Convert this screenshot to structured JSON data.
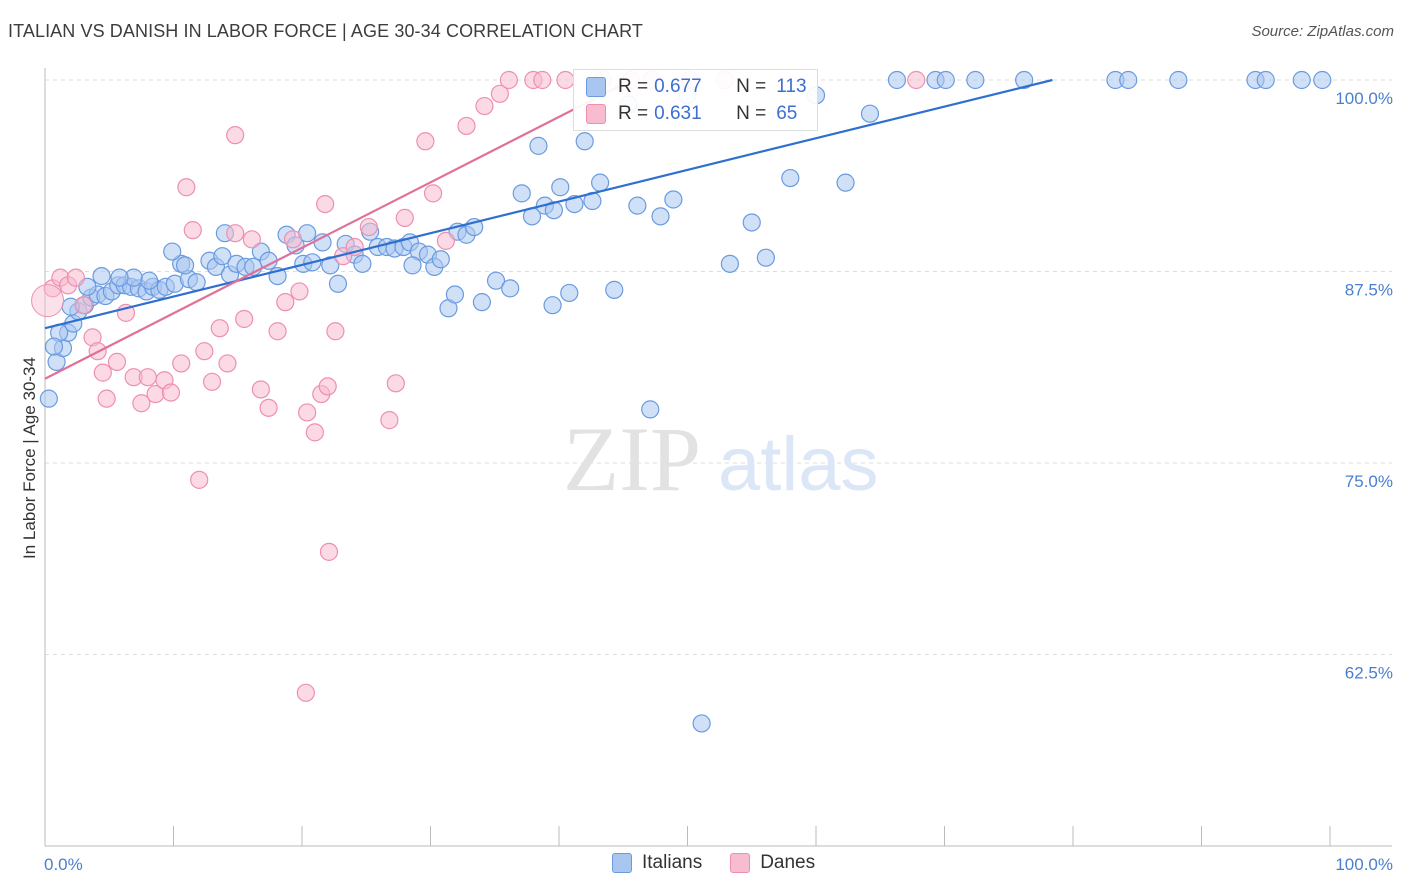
{
  "title": "ITALIAN VS DANISH IN LABOR FORCE | AGE 30-34 CORRELATION CHART",
  "source": "Source: ZipAtlas.com",
  "watermark": {
    "zip": "ZIP",
    "atlas": "atlas"
  },
  "legend": {
    "rows": [
      {
        "r_label": "R =",
        "r_value": "0.677",
        "n_label": "N =",
        "n_value": "113"
      },
      {
        "r_label": "R =",
        "r_value": "0.631",
        "n_label": "N =",
        "n_value": "65"
      }
    ]
  },
  "bottom_legend": [
    "Italians",
    "Danes"
  ],
  "colors": {
    "italians_fill": "#a9c6f0",
    "italians_stroke": "#6a9be0",
    "italians_line": "#2f6fd0",
    "danes_fill": "#f7bcd0",
    "danes_stroke": "#ee8fb0",
    "danes_line": "#e0709a",
    "axis_text": "#4a7fd0",
    "grid": "#dddddd"
  },
  "chart_data": {
    "type": "scatter",
    "title": "ITALIAN VS DANISH IN LABOR FORCE | AGE 30-34 CORRELATION CHART",
    "xlabel": "",
    "ylabel": "In Labor Force | Age 30-34",
    "xlim": [
      0,
      100
    ],
    "ylim": [
      50,
      101.5
    ],
    "x_tick_labels": [
      "0.0%",
      "100.0%"
    ],
    "y_ticks": [
      {
        "value": 100,
        "label": "100.0%"
      },
      {
        "value": 87.5,
        "label": "87.5%"
      },
      {
        "value": 75,
        "label": "75.0%"
      },
      {
        "value": 62.5,
        "label": "62.5%"
      }
    ],
    "grid": true,
    "series": [
      {
        "name": "Italians",
        "r": 0.677,
        "n": 113,
        "trend": {
          "x": [
            0,
            78.4
          ],
          "y": [
            83.8,
            100
          ]
        },
        "points": [
          [
            0.3,
            79.2
          ],
          [
            0.9,
            81.6
          ],
          [
            1.4,
            82.5
          ],
          [
            1.8,
            83.5
          ],
          [
            2.2,
            84.1
          ],
          [
            2.6,
            84.9
          ],
          [
            3.1,
            85.3
          ],
          [
            3.6,
            85.8
          ],
          [
            4.1,
            86.0
          ],
          [
            4.7,
            85.9
          ],
          [
            5.2,
            86.2
          ],
          [
            5.7,
            86.6
          ],
          [
            6.2,
            86.6
          ],
          [
            6.7,
            86.5
          ],
          [
            7.3,
            86.4
          ],
          [
            7.9,
            86.2
          ],
          [
            8.4,
            86.5
          ],
          [
            8.9,
            86.3
          ],
          [
            9.4,
            86.5
          ],
          [
            10.1,
            86.7
          ],
          [
            10.6,
            88.0
          ],
          [
            11.2,
            87.0
          ],
          [
            11.8,
            86.8
          ],
          [
            12.8,
            88.2
          ],
          [
            13.3,
            87.8
          ],
          [
            13.8,
            88.5
          ],
          [
            14.4,
            87.3
          ],
          [
            14.9,
            88.0
          ],
          [
            15.6,
            87.8
          ],
          [
            16.2,
            87.8
          ],
          [
            16.8,
            88.8
          ],
          [
            17.4,
            88.2
          ],
          [
            18.1,
            87.2
          ],
          [
            18.8,
            89.9
          ],
          [
            19.5,
            89.2
          ],
          [
            20.1,
            88.0
          ],
          [
            20.8,
            88.1
          ],
          [
            21.6,
            89.4
          ],
          [
            22.2,
            87.9
          ],
          [
            22.8,
            86.7
          ],
          [
            23.4,
            89.3
          ],
          [
            24.1,
            88.6
          ],
          [
            24.7,
            88.0
          ],
          [
            25.3,
            90.1
          ],
          [
            25.9,
            89.1
          ],
          [
            26.6,
            89.1
          ],
          [
            27.2,
            89.0
          ],
          [
            27.9,
            89.1
          ],
          [
            28.4,
            89.4
          ],
          [
            29.1,
            88.8
          ],
          [
            29.8,
            88.6
          ],
          [
            30.3,
            87.8
          ],
          [
            30.8,
            88.3
          ],
          [
            31.4,
            85.1
          ],
          [
            32.1,
            90.1
          ],
          [
            32.8,
            89.9
          ],
          [
            33.4,
            90.4
          ],
          [
            34.0,
            85.5
          ],
          [
            35.1,
            86.9
          ],
          [
            36.2,
            86.4
          ],
          [
            37.1,
            92.6
          ],
          [
            37.9,
            91.1
          ],
          [
            38.4,
            95.7
          ],
          [
            38.9,
            91.8
          ],
          [
            39.6,
            91.5
          ],
          [
            40.1,
            93.0
          ],
          [
            41.2,
            91.9
          ],
          [
            42.0,
            96.0
          ],
          [
            42.6,
            92.1
          ],
          [
            43.2,
            93.3
          ],
          [
            44.3,
            86.3
          ],
          [
            45.4,
            98.4
          ],
          [
            46.1,
            91.8
          ],
          [
            47.1,
            78.5
          ],
          [
            47.9,
            91.1
          ],
          [
            48.9,
            92.2
          ],
          [
            50.0,
            99.0
          ],
          [
            51.1,
            58.0
          ],
          [
            53.3,
            88.0
          ],
          [
            55.0,
            90.7
          ],
          [
            56.1,
            88.4
          ],
          [
            58.0,
            93.6
          ],
          [
            60.0,
            99.0
          ],
          [
            62.3,
            93.3
          ],
          [
            64.2,
            97.8
          ],
          [
            66.3,
            100.0
          ],
          [
            69.3,
            100.0
          ],
          [
            70.1,
            100.0
          ],
          [
            72.4,
            100.0
          ],
          [
            76.2,
            100.0
          ],
          [
            83.3,
            100.0
          ],
          [
            84.3,
            100.0
          ],
          [
            88.2,
            100.0
          ],
          [
            94.2,
            100.0
          ],
          [
            95.0,
            100.0
          ],
          [
            97.8,
            100.0
          ],
          [
            99.4,
            100.0
          ],
          [
            40.8,
            86.1
          ],
          [
            39.5,
            85.3
          ],
          [
            31.9,
            86.0
          ],
          [
            20.4,
            90.0
          ],
          [
            14.0,
            90.0
          ],
          [
            10.9,
            87.9
          ],
          [
            9.9,
            88.8
          ],
          [
            8.1,
            86.9
          ],
          [
            6.9,
            87.1
          ],
          [
            5.8,
            87.1
          ],
          [
            4.4,
            87.2
          ],
          [
            3.3,
            86.5
          ],
          [
            2.0,
            85.2
          ],
          [
            1.1,
            83.5
          ],
          [
            0.7,
            82.6
          ],
          [
            28.6,
            87.9
          ]
        ]
      },
      {
        "name": "Danes",
        "r": 0.631,
        "n": 65,
        "trend": {
          "x": [
            0,
            44.7
          ],
          "y": [
            80.5,
            99.6
          ]
        },
        "points": [
          [
            0.6,
            86.4
          ],
          [
            1.2,
            87.1
          ],
          [
            1.8,
            86.6
          ],
          [
            2.4,
            87.1
          ],
          [
            3.0,
            85.3
          ],
          [
            3.7,
            83.2
          ],
          [
            4.1,
            82.3
          ],
          [
            4.5,
            80.9
          ],
          [
            4.8,
            79.2
          ],
          [
            5.6,
            81.6
          ],
          [
            6.3,
            84.8
          ],
          [
            6.9,
            80.6
          ],
          [
            7.5,
            78.9
          ],
          [
            8.0,
            80.6
          ],
          [
            8.6,
            79.5
          ],
          [
            9.3,
            80.4
          ],
          [
            9.8,
            79.6
          ],
          [
            10.6,
            81.5
          ],
          [
            11.0,
            93.0
          ],
          [
            11.5,
            90.2
          ],
          [
            12.4,
            82.3
          ],
          [
            13.0,
            80.3
          ],
          [
            13.6,
            83.8
          ],
          [
            14.2,
            81.5
          ],
          [
            14.8,
            90.0
          ],
          [
            15.5,
            84.4
          ],
          [
            16.1,
            89.6
          ],
          [
            16.8,
            79.8
          ],
          [
            17.4,
            78.6
          ],
          [
            18.1,
            83.6
          ],
          [
            18.7,
            85.5
          ],
          [
            19.3,
            89.6
          ],
          [
            19.8,
            86.2
          ],
          [
            20.4,
            78.3
          ],
          [
            21.0,
            77.0
          ],
          [
            21.5,
            79.5
          ],
          [
            22.0,
            80.0
          ],
          [
            22.6,
            83.6
          ],
          [
            23.2,
            88.5
          ],
          [
            24.1,
            89.1
          ],
          [
            25.2,
            90.4
          ],
          [
            26.8,
            77.8
          ],
          [
            27.3,
            80.2
          ],
          [
            28.0,
            91.0
          ],
          [
            29.6,
            96.0
          ],
          [
            30.2,
            92.6
          ],
          [
            31.2,
            89.5
          ],
          [
            32.8,
            97.0
          ],
          [
            34.2,
            98.3
          ],
          [
            35.4,
            99.1
          ],
          [
            36.1,
            100.0
          ],
          [
            38.0,
            100.0
          ],
          [
            38.7,
            100.0
          ],
          [
            40.5,
            100.0
          ],
          [
            43.4,
            100.0
          ],
          [
            45.6,
            100.0
          ],
          [
            47.2,
            100.0
          ],
          [
            50.2,
            100.0
          ],
          [
            52.9,
            100.0
          ],
          [
            67.8,
            100.0
          ],
          [
            14.8,
            96.4
          ],
          [
            22.1,
            69.2
          ],
          [
            20.3,
            60.0
          ],
          [
            21.8,
            91.9
          ],
          [
            12.0,
            73.9
          ]
        ]
      }
    ]
  }
}
